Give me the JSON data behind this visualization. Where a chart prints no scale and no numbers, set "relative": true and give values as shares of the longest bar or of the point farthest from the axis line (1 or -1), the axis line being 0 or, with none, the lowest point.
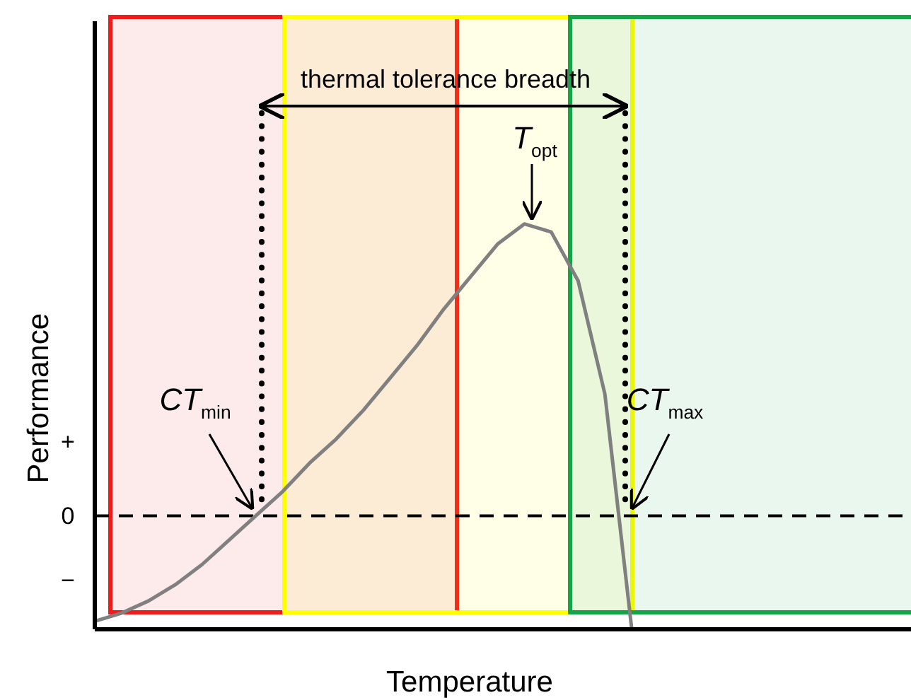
{
  "chart_data": {
    "type": "line",
    "relative": true,
    "xlabel": "Temperature",
    "ylabel": "Performance",
    "categories": [
      null,
      null,
      null,
      null,
      null,
      null,
      null,
      null,
      null,
      null,
      null,
      null,
      null,
      null,
      null,
      null,
      null,
      null,
      null,
      null,
      null
    ],
    "series": [
      {
        "color": "#808080",
        "values": [
          0.02,
          0.04,
          0.07,
          0.11,
          0.16,
          0.22,
          0.28,
          0.34,
          0.41,
          0.47,
          0.54,
          0.62,
          0.7,
          0.79,
          0.87,
          0.95,
          1.0,
          0.98,
          0.86,
          0.58,
          0
        ]
      }
    ],
    "ref_lines": [
      {
        "axis": "y",
        "value": 0.28,
        "label": "0",
        "color": "#000000",
        "line_style": "dashed"
      }
    ],
    "annotations": [
      "thermal tolerance breadth",
      "T$_{opt}$",
      "CT$_{min}$",
      "CT$_{max}$",
      "+",
      "−"
    ]
  }
}
